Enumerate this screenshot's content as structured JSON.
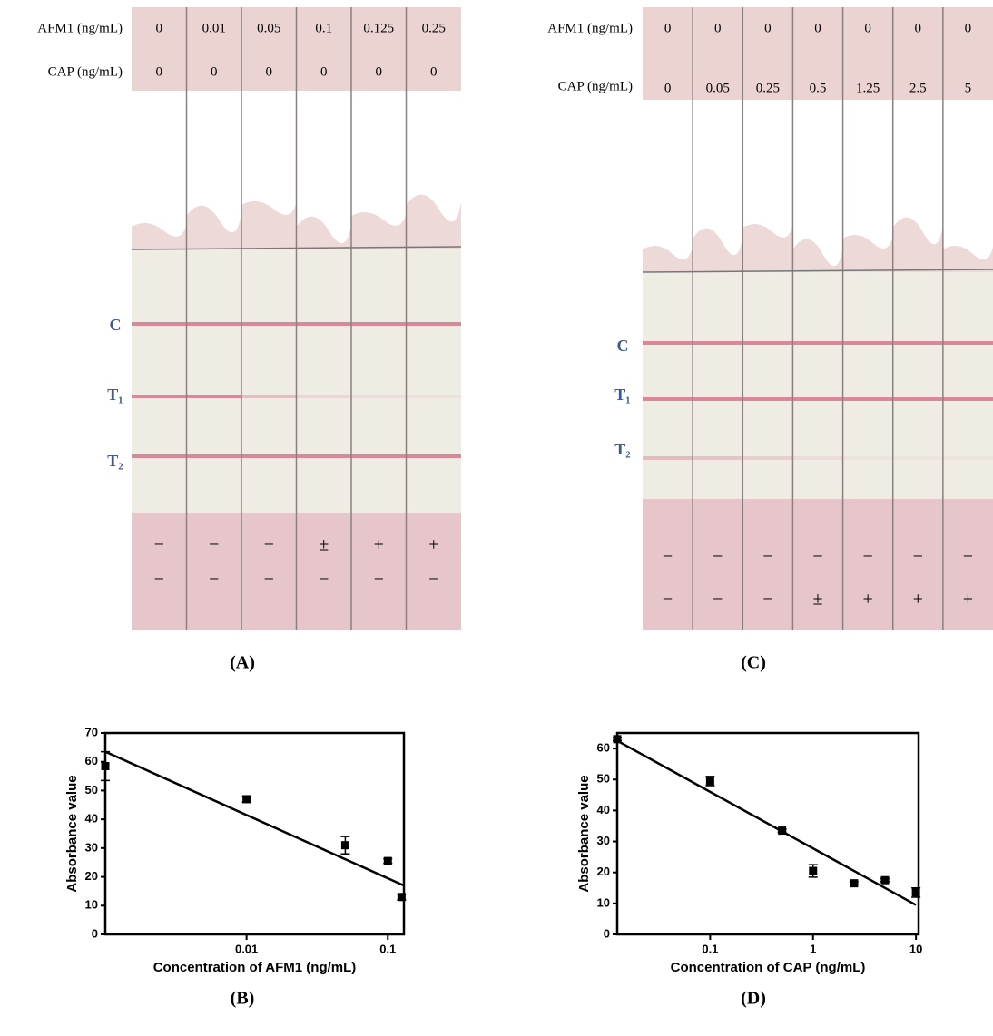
{
  "panels": [
    {
      "caption": "(A)",
      "row_labels": [
        "AFM1 (ng/mL)",
        "CAP (ng/mL)"
      ],
      "line_labels": [
        "C",
        "T₁",
        "T₂"
      ],
      "lanes": [
        {
          "afm1": "0",
          "cap": "0",
          "sign_1": "−",
          "sign_2": "−"
        },
        {
          "afm1": "0.01",
          "cap": "0",
          "sign_1": "−",
          "sign_2": "−"
        },
        {
          "afm1": "0.05",
          "cap": "0",
          "sign_1": "−",
          "sign_2": "−"
        },
        {
          "afm1": "0.1",
          "cap": "0",
          "sign_1": "±",
          "sign_2": "−"
        },
        {
          "afm1": "0.125",
          "cap": "0",
          "sign_1": "+",
          "sign_2": "−"
        },
        {
          "afm1": "0.25",
          "cap": "0",
          "sign_1": "+",
          "sign_2": "−"
        }
      ]
    },
    {
      "caption": "(C)",
      "row_labels": [
        "AFM1 (ng/mL)",
        "CAP (ng/mL)"
      ],
      "line_labels": [
        "C",
        "T₁",
        "T₂"
      ],
      "lanes": [
        {
          "afm1": "0",
          "cap": "0",
          "sign_1": "−",
          "sign_2": "−"
        },
        {
          "afm1": "0",
          "cap": "0.05",
          "sign_1": "−",
          "sign_2": "−"
        },
        {
          "afm1": "0",
          "cap": "0.25",
          "sign_1": "−",
          "sign_2": "−"
        },
        {
          "afm1": "0",
          "cap": "0.5",
          "sign_1": "−",
          "sign_2": "±"
        },
        {
          "afm1": "0",
          "cap": "1.25",
          "sign_1": "−",
          "sign_2": "+"
        },
        {
          "afm1": "0",
          "cap": "2.5",
          "sign_1": "−",
          "sign_2": "+"
        },
        {
          "afm1": "0",
          "cap": "5",
          "sign_1": "−",
          "sign_2": "+"
        }
      ]
    }
  ],
  "chart_data": [
    {
      "type": "scatter",
      "caption": "(B)",
      "x_label": "Concentration of AFM1 (ng/mL)",
      "y_label": "Absorbance value",
      "x_scale": "log",
      "color": "#000000",
      "x": [
        0.001,
        0.01,
        0.05,
        0.1,
        0.125
      ],
      "values": [
        58.5,
        47,
        31,
        25.5,
        13
      ],
      "errors": [
        5,
        1,
        3,
        0.8,
        1
      ],
      "fit": {
        "x": [
          0.001,
          0.13
        ],
        "values": [
          63.5,
          17
        ]
      },
      "xlim": [
        0.001,
        0.13
      ],
      "ylim": [
        0,
        70
      ],
      "xticks": [
        0.01,
        0.1
      ],
      "yticks": [
        0,
        10,
        20,
        30,
        40,
        50,
        60,
        70
      ]
    },
    {
      "type": "scatter",
      "caption": "(D)",
      "x_label": "Concentration of CAP (ng/mL)",
      "y_label": "Absorbance value",
      "x_scale": "log",
      "color": "#000000",
      "x": [
        0.0125,
        0.1,
        0.5,
        1,
        2.5,
        5,
        10
      ],
      "values": [
        63,
        49.5,
        33.5,
        20.5,
        16.5,
        17.5,
        13.5
      ],
      "errors": [
        0.5,
        1.5,
        0.5,
        2,
        0.5,
        0.5,
        1.5
      ],
      "fit": {
        "x": [
          0.0125,
          10
        ],
        "values": [
          62.5,
          9.5
        ]
      },
      "xlim": [
        0.0125,
        10.6
      ],
      "ylim": [
        0,
        65
      ],
      "xticks": [
        0.1,
        1,
        10
      ],
      "yticks": [
        0,
        10,
        20,
        30,
        40,
        50,
        60
      ]
    }
  ]
}
